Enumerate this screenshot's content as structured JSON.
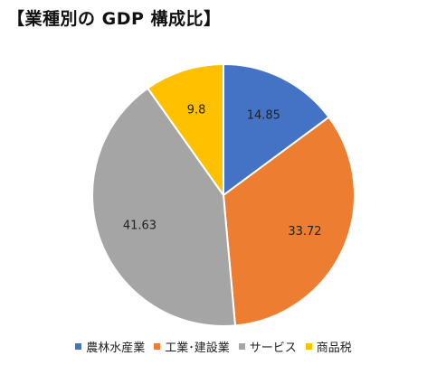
{
  "title": "【業種別の GDP 構成比】",
  "colors": {
    "agriculture": "#4472C4",
    "industry": "#ED7D31",
    "services": "#A5A5A5",
    "tax": "#FFC000"
  },
  "chart_data": {
    "type": "pie",
    "title": "【業種別の GDP 構成比】",
    "start_angle": "12 o'clock",
    "direction": "clockwise",
    "legend_position": "bottom",
    "slices": [
      {
        "name": "農林水産業",
        "value": 14.85,
        "label": "14.85",
        "color": "#4472C4"
      },
      {
        "name": "工業･建設業",
        "value": 33.72,
        "label": "33.72",
        "color": "#ED7D31"
      },
      {
        "name": "サービス",
        "value": 41.63,
        "label": "41.63",
        "color": "#A5A5A5"
      },
      {
        "name": "商品税",
        "value": 9.8,
        "label": "9.8",
        "color": "#FFC000"
      }
    ]
  }
}
